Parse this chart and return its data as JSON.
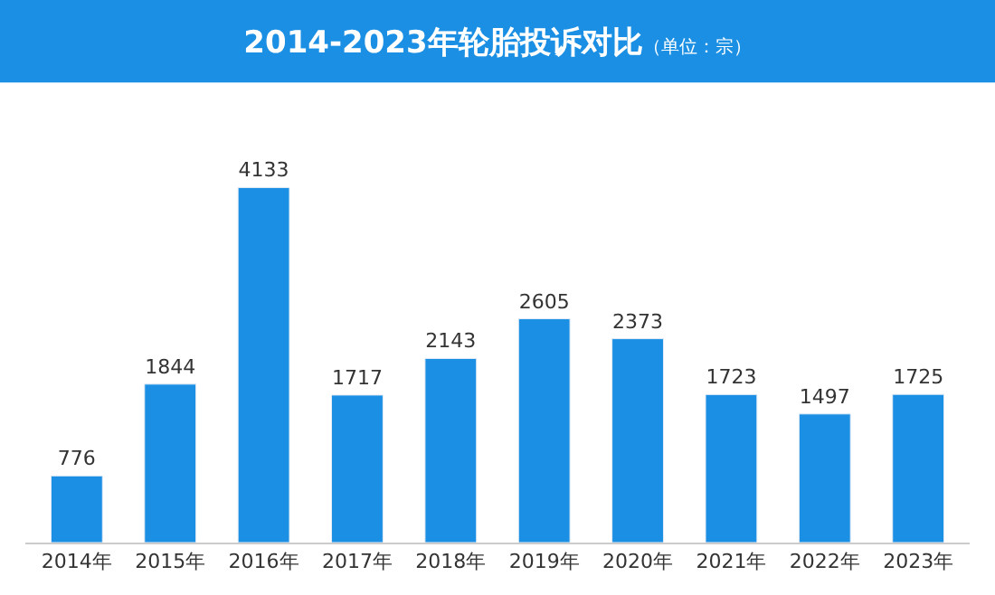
{
  "chart_data": {
    "type": "bar",
    "title": "2014-2023年轮胎投诉对比",
    "subtitle": "（单位：宗）",
    "categories": [
      "2014年",
      "2015年",
      "2016年",
      "2017年",
      "2018年",
      "2019年",
      "2020年",
      "2021年",
      "2022年",
      "2023年"
    ],
    "values": [
      776,
      1844,
      4133,
      1717,
      2143,
      2605,
      2373,
      1723,
      1497,
      1725
    ],
    "color": "#1a8fe3",
    "data_labels": true
  }
}
